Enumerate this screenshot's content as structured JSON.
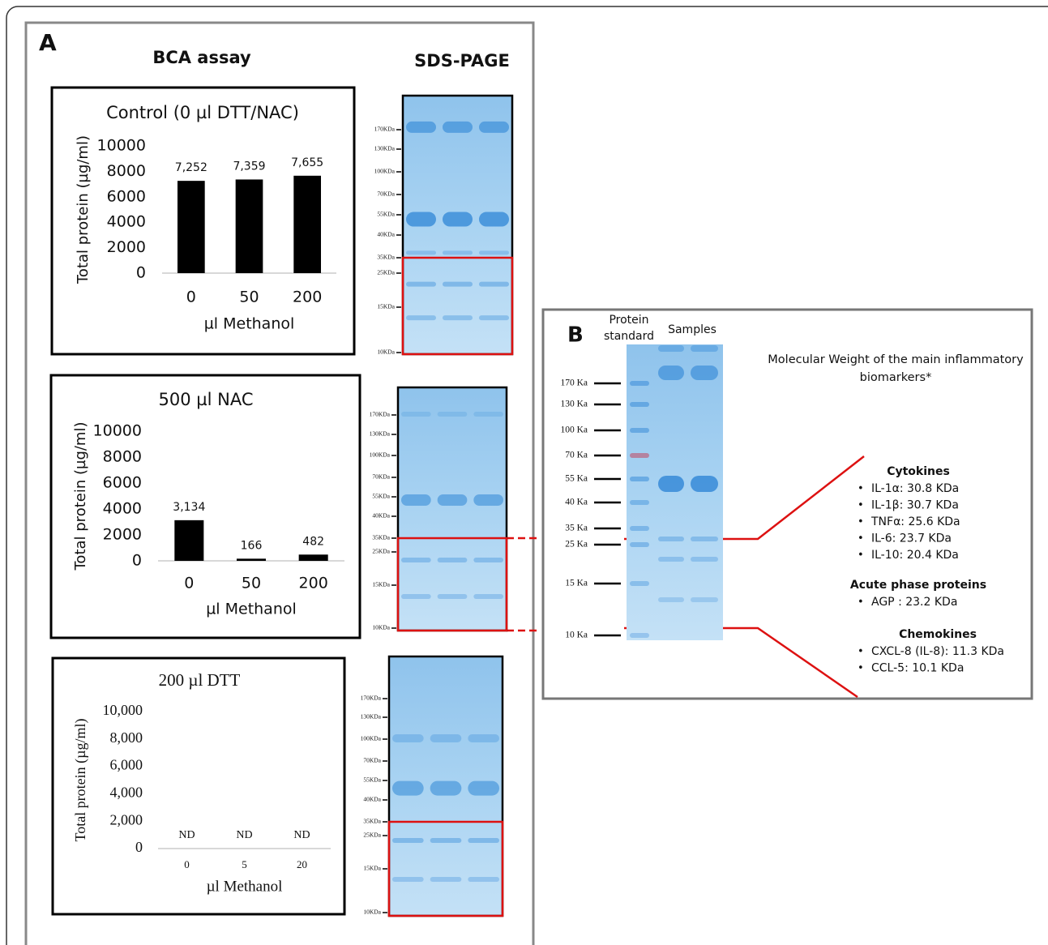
{
  "panel_a": {
    "label": "A",
    "bca_title": "BCA assay",
    "sds_title": "SDS-PAGE",
    "gels": [
      {
        "markers": [
          "170KDa",
          "130KDa",
          "100KDa",
          "70KDa",
          "55KDa",
          "40KDa",
          "35KDa",
          "25KDa",
          "15KDa",
          "10KDa"
        ]
      },
      {
        "markers": [
          "170KDa",
          "130KDa",
          "100KDa",
          "70KDa",
          "55KDa",
          "40KDa",
          "35KDa",
          "25KDa",
          "15KDa",
          "10KDa"
        ]
      },
      {
        "markers": [
          "170KDa",
          "130KDa",
          "100KDa",
          "70KDa",
          "55KDa",
          "40KDa",
          "35KDa",
          "25KDa",
          "15KDa",
          "10KDa"
        ]
      }
    ]
  },
  "chart_data": [
    {
      "type": "bar",
      "title": "Control (0 µl DTT/NAC)",
      "categories": [
        "0",
        "50",
        "200"
      ],
      "values": [
        7252,
        7359,
        7655
      ],
      "value_labels": [
        "7,252",
        "7,359",
        "7,655"
      ],
      "color": "#000000",
      "xlabel": "µl Methanol",
      "ylabel": "Total protein (µg/ml)",
      "ylim": [
        0,
        10000
      ],
      "yticks": [
        0,
        2000,
        4000,
        6000,
        8000,
        10000
      ]
    },
    {
      "type": "bar",
      "title": "500 µl NAC",
      "categories": [
        "0",
        "50",
        "200"
      ],
      "values": [
        3134,
        166,
        482
      ],
      "value_labels": [
        "3,134",
        "166",
        "482"
      ],
      "color": "#000000",
      "xlabel": "µl Methanol",
      "ylabel": "Total protein (µg/ml)",
      "ylim": [
        0,
        10000
      ],
      "yticks": [
        0,
        2000,
        4000,
        6000,
        8000,
        10000
      ]
    },
    {
      "type": "bar",
      "title": "200 µl DTT",
      "categories": [
        "0",
        "5",
        "20"
      ],
      "values": [
        null,
        null,
        null
      ],
      "value_labels": [
        "ND",
        "ND",
        "ND"
      ],
      "color": "#000000",
      "xlabel": "µl Methanol",
      "ylabel": "Total protein (µg/ml)",
      "ylim": [
        0,
        10000
      ],
      "yticks": [
        0,
        {
          "value": 2000,
          "label": "2,000"
        },
        {
          "value": 4000,
          "label": "4,000"
        },
        {
          "value": 6000,
          "label": "6,000"
        },
        {
          "value": 8000,
          "label": "8,000"
        },
        {
          "value": 10000,
          "label": "10,000"
        }
      ]
    }
  ],
  "panel_b": {
    "label": "B",
    "standard_label": [
      "Protein",
      "standard"
    ],
    "samples_label": "Samples",
    "markers": [
      "170 Ka",
      "130 Ka",
      "100 Ka",
      "70 Ka",
      "55 Ka",
      "40 Ka",
      "35 Ka",
      "25 Ka",
      "15 Ka",
      "10 Ka"
    ],
    "title": "Molecular Weight of the main inflammatory biomarkers*",
    "groups": [
      {
        "name": "Cytokines",
        "items": [
          "IL-1α: 30.8 KDa",
          "IL-1β: 30.7 KDa",
          "TNFα: 25.6 KDa",
          "IL-6: 23.7 KDa",
          "IL-10: 20.4 KDa"
        ]
      },
      {
        "name": "Acute phase proteins",
        "items": [
          "AGP : 23.2 KDa"
        ]
      },
      {
        "name": "Chemokines",
        "items": [
          "CXCL-8 (IL-8): 11.3 KDa",
          "CCL-5: 10.1 KDa"
        ]
      }
    ]
  }
}
